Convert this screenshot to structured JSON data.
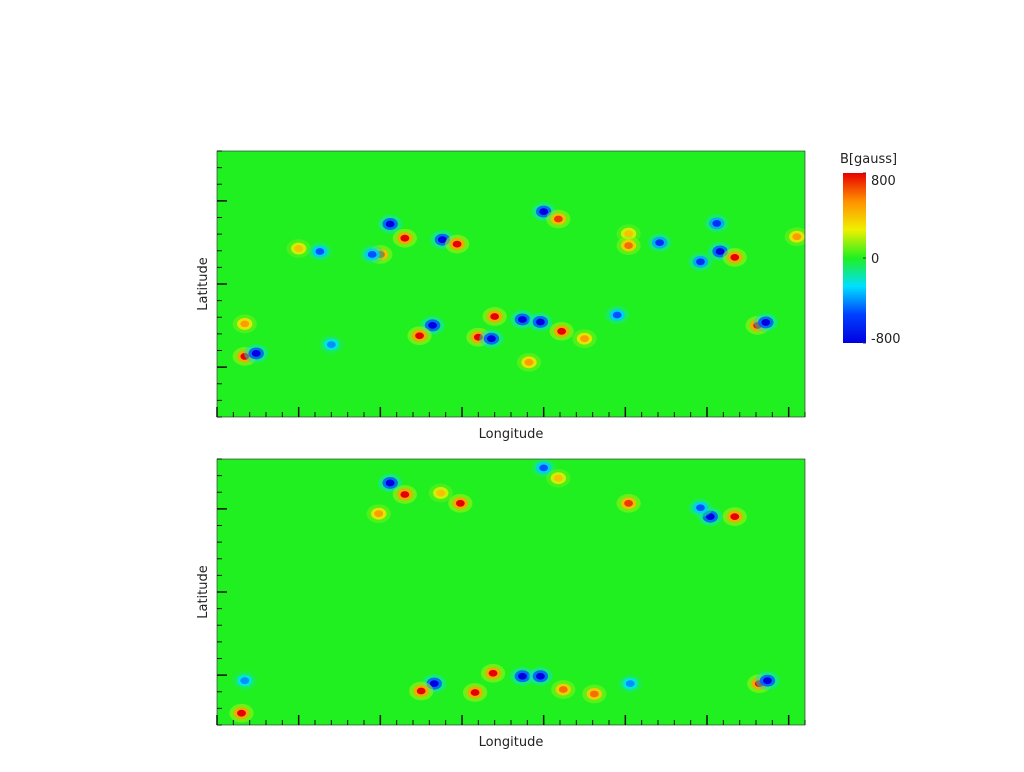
{
  "chart_data": [
    {
      "type": "heatmap",
      "x_label": "Longitude",
      "y_label": "Latitude",
      "xlim": [
        0,
        360
      ],
      "ylim": [
        -90,
        90
      ],
      "xticks": [
        0,
        50,
        100,
        150,
        200,
        250,
        300,
        350
      ],
      "xminorticks": [
        0,
        10,
        20,
        30,
        40,
        50,
        60,
        70,
        80,
        90,
        100,
        110,
        120,
        130,
        140,
        150,
        160,
        170,
        180,
        190,
        200,
        210,
        220,
        230,
        240,
        250,
        260,
        270,
        280,
        290,
        300,
        310,
        320,
        330,
        340,
        350,
        360
      ],
      "yticks": [
        -56.25,
        0,
        56.25
      ],
      "yminorticks": [
        -90,
        -78.75,
        -67.5,
        -56.25,
        -45,
        -33.75,
        -22.5,
        -11.25,
        0,
        11.25,
        22.5,
        33.75,
        45,
        56.25,
        67.5,
        78.75,
        90
      ],
      "colorbar": {
        "label": "B[gauss]",
        "lim": [
          -800,
          800
        ],
        "ticks": [
          800,
          0,
          -800
        ],
        "colors": [
          "#0000e0",
          "#0040ff",
          "#00e0ff",
          "#20f020",
          "#f0f000",
          "#ff9000",
          "#e80000"
        ]
      },
      "spots": {
        "x": [
          106,
          115,
          138,
          147,
          200,
          209,
          252,
          252,
          271,
          306,
          308,
          296,
          317,
          355,
          100,
          95,
          50,
          63,
          170,
          187,
          198,
          132,
          124,
          160,
          168,
          211,
          225,
          245,
          331,
          336,
          17,
          17,
          24,
          191,
          70
        ],
        "y": [
          40.6,
          31,
          30,
          27,
          49,
          44,
          34,
          26,
          28,
          41,
          22,
          15,
          18,
          32,
          20,
          20,
          24,
          22,
          -22,
          -24,
          -25.7,
          -28,
          -35,
          -36,
          -37,
          -32,
          -37,
          -21,
          -28,
          -26,
          -27,
          -49,
          -47,
          -53,
          -41
        ],
        "values": [
          -800,
          800,
          -800,
          800,
          -800,
          700,
          400,
          600,
          -600,
          -600,
          -800,
          -600,
          800,
          500,
          700,
          -500,
          400,
          -500,
          800,
          -800,
          -800,
          -800,
          800,
          800,
          -800,
          800,
          500,
          -500,
          800,
          -800,
          500,
          800,
          -800,
          500,
          -400
        ]
      }
    },
    {
      "type": "heatmap",
      "x_label": "Longitude",
      "y_label": "Latitude",
      "xlim": [
        0,
        360
      ],
      "ylim": [
        -90,
        90
      ],
      "xticks": [
        0,
        50,
        100,
        150,
        200,
        250,
        300,
        350
      ],
      "xminorticks": [
        0,
        10,
        20,
        30,
        40,
        50,
        60,
        70,
        80,
        90,
        100,
        110,
        120,
        130,
        140,
        150,
        160,
        170,
        180,
        190,
        200,
        210,
        220,
        230,
        240,
        250,
        260,
        270,
        280,
        290,
        300,
        310,
        320,
        330,
        340,
        350,
        360
      ],
      "yticks": [
        -56.25,
        0,
        56.25
      ],
      "yminorticks": [
        -90,
        -78.75,
        -67.5,
        -56.25,
        -45,
        -33.75,
        -22.5,
        -11.25,
        0,
        11.25,
        22.5,
        33.75,
        45,
        56.25,
        67.5,
        78.75,
        90
      ],
      "spots": {
        "x": [
          106,
          115,
          137,
          149,
          200,
          209,
          252,
          302,
          317,
          296,
          99,
          169,
          187,
          198,
          133,
          125,
          158,
          212,
          231,
          253,
          332,
          337,
          15,
          17
        ],
        "y": [
          73.8,
          66,
          67,
          60,
          84,
          77,
          60,
          51,
          51,
          57,
          53,
          -55,
          -57,
          -57,
          -62,
          -67,
          -68,
          -66,
          -69,
          -62,
          -62,
          -60,
          -82,
          -60
        ],
        "values": [
          -800,
          800,
          400,
          800,
          -500,
          400,
          700,
          -800,
          800,
          -500,
          500,
          800,
          -800,
          -800,
          -800,
          800,
          800,
          600,
          600,
          -400,
          800,
          -800,
          800,
          -400
        ]
      }
    }
  ]
}
